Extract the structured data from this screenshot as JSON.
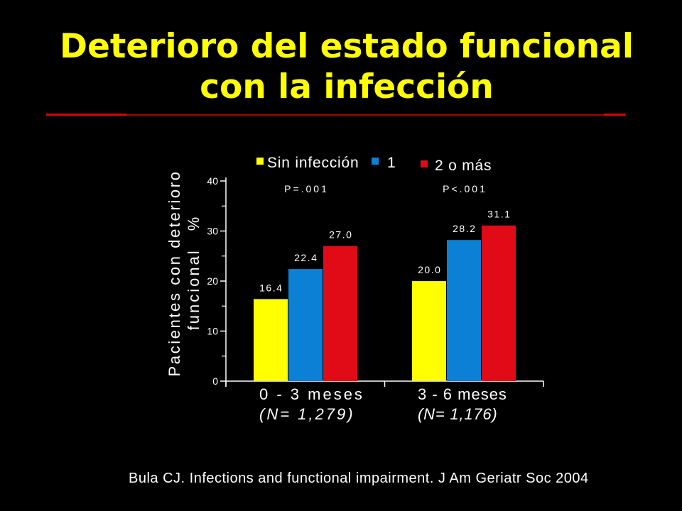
{
  "slide": {
    "citation": "Bula CJ. Infections and functional impairment. J Am Geriatr Soc 2004"
  },
  "colors": {
    "background": "#000000",
    "title": "#FFFF00",
    "rule": "#E0000B",
    "rule_thin": "#A80000",
    "text": "#FFFFFF",
    "axis": "#FFFFFF"
  },
  "chart_data": {
    "type": "bar",
    "title": "Deterioro del estado funcional con la infección",
    "categories": [
      "0 - 3 meses",
      "3 - 6 meses"
    ],
    "category_sublabels": [
      "(N= 1,279)",
      "(N= 1,176)"
    ],
    "series": [
      {
        "name": "Sin infección",
        "color": "#FFFF00",
        "values": [
          16.4,
          20.0
        ],
        "labels": [
          "16.4",
          "20.0"
        ]
      },
      {
        "name": "1",
        "color": "#0B80D4",
        "values": [
          22.4,
          28.2
        ],
        "labels": [
          "22.4",
          "28.2"
        ]
      },
      {
        "name": "2 o más",
        "color": "#E10A17",
        "values": [
          27.0,
          31.1
        ],
        "labels": [
          "27.0",
          "31.1"
        ]
      }
    ],
    "p_values": [
      "P=.001",
      "P<.001"
    ],
    "ylabel": [
      "Pacientes con deterioro",
      "funcional %"
    ],
    "ylim": [
      0,
      40
    ],
    "yticks": [
      0,
      10,
      20,
      30,
      40
    ],
    "grid": false,
    "legend": "top"
  }
}
